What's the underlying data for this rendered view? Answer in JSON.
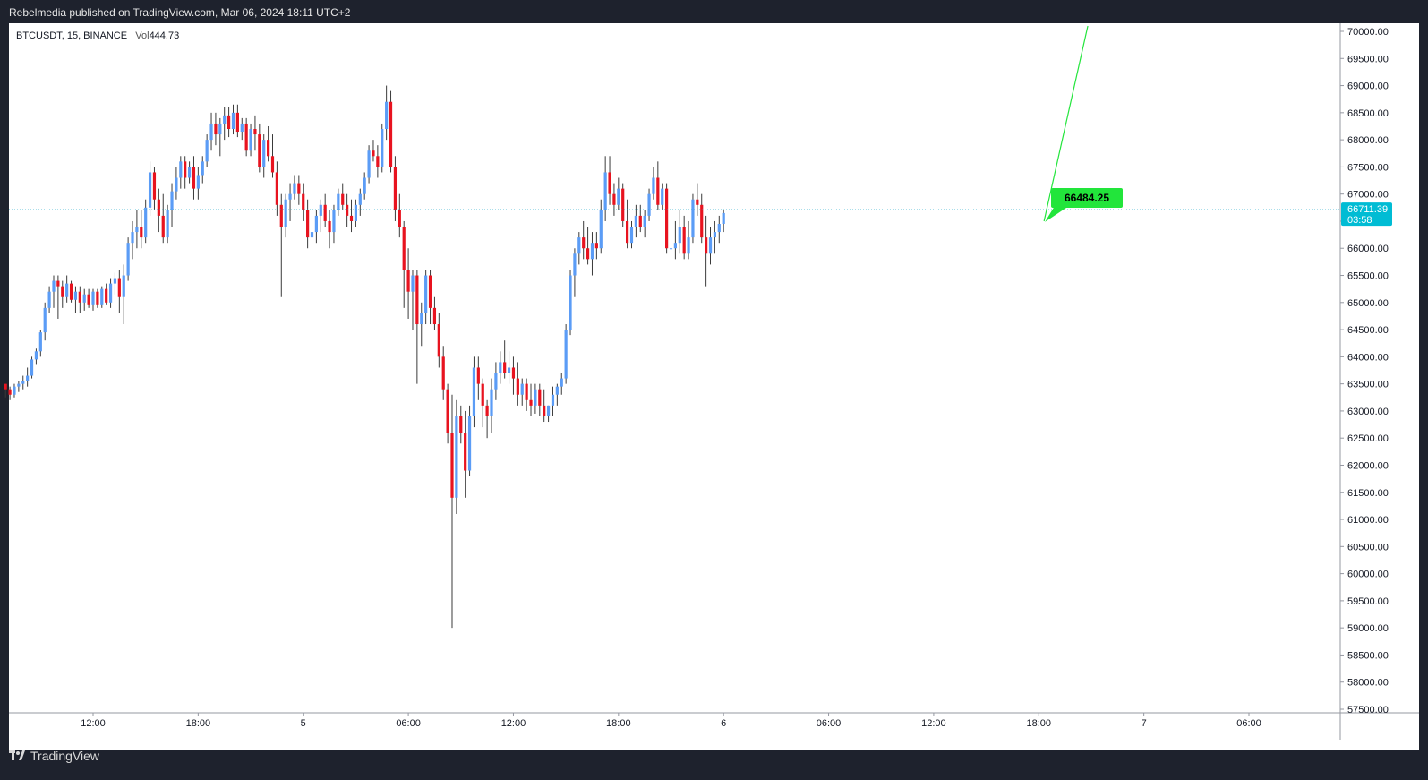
{
  "header": {
    "text": "Rebelmedia published on TradingView.com, Mar 06, 2024 18:11 UTC+2"
  },
  "legend": {
    "symbol": "BTCUSDT, 15, BINANCE",
    "vol_label": "Vol",
    "vol_value": "444.73"
  },
  "footer": {
    "brand": "TradingView"
  },
  "colors": {
    "up": "#5b9cf6",
    "down": "#e8131f",
    "wick": "#3a3a3a",
    "price_line": "#1ea7c7",
    "price_badge": "#00bcd4",
    "projection": "#22e53b",
    "label_bg": "#22e53b"
  },
  "chart_data": {
    "type": "candlestick",
    "symbol": "BTCUSDT",
    "interval": "15",
    "exchange": "BINANCE",
    "ylim": [
      57500,
      70000
    ],
    "y_ticks": [
      "70000.00",
      "69500.00",
      "69000.00",
      "68500.00",
      "68000.00",
      "67500.00",
      "67000.00",
      "66500.00",
      "66000.00",
      "65500.00",
      "65000.00",
      "64500.00",
      "64000.00",
      "63500.00",
      "63000.00",
      "62500.00",
      "62000.00",
      "61500.00",
      "61000.00",
      "60500.00",
      "60000.00",
      "59500.00",
      "59000.00",
      "58500.00",
      "58000.00",
      "57500.00"
    ],
    "x_ticks": [
      {
        "label": "12:00",
        "t": 12
      },
      {
        "label": "18:00",
        "t": 18
      },
      {
        "label": "5",
        "t": 24
      },
      {
        "label": "06:00",
        "t": 30
      },
      {
        "label": "12:00",
        "t": 36
      },
      {
        "label": "18:00",
        "t": 42
      },
      {
        "label": "6",
        "t": 48
      },
      {
        "label": "06:00",
        "t": 54
      },
      {
        "label": "12:00",
        "t": 60
      },
      {
        "label": "18:00",
        "t": 66
      },
      {
        "label": "7",
        "t": 72
      },
      {
        "label": "06:00",
        "t": 78
      }
    ],
    "xlim_hours": [
      7,
      83.5
    ],
    "current_price": {
      "value": 66711.39,
      "label": "66711.39",
      "countdown": "03:58"
    },
    "annotation": {
      "label": "66484.25",
      "price": 66484.25
    },
    "projection_line": {
      "from": {
        "t": 66.3,
        "price": 66500
      },
      "to": {
        "t": 68.8,
        "price": 70100
      }
    },
    "candles": [
      [
        63500,
        63500,
        63250,
        63400
      ],
      [
        63400,
        63450,
        63200,
        63300
      ],
      [
        63300,
        63500,
        63250,
        63450
      ],
      [
        63450,
        63550,
        63350,
        63500
      ],
      [
        63500,
        63650,
        63400,
        63550
      ],
      [
        63550,
        63800,
        63450,
        63650
      ],
      [
        63650,
        64000,
        63600,
        63950
      ],
      [
        63950,
        64150,
        63850,
        64100
      ],
      [
        64100,
        64500,
        64000,
        64450
      ],
      [
        64450,
        65000,
        64300,
        64900
      ],
      [
        64900,
        65300,
        64800,
        65200
      ],
      [
        65200,
        65500,
        64900,
        65400
      ],
      [
        65400,
        65500,
        64700,
        65300
      ],
      [
        65300,
        65400,
        64900,
        65100
      ],
      [
        65100,
        65500,
        65000,
        65350
      ],
      [
        65350,
        65400,
        65000,
        65050
      ],
      [
        65050,
        65300,
        64800,
        65200
      ],
      [
        65200,
        65300,
        64800,
        65000
      ],
      [
        65000,
        65250,
        64850,
        65150
      ],
      [
        65150,
        65250,
        64900,
        64950
      ],
      [
        64950,
        65250,
        64850,
        65200
      ],
      [
        65200,
        65250,
        64900,
        64950
      ],
      [
        64950,
        65300,
        64900,
        65250
      ],
      [
        65250,
        65350,
        64950,
        65000
      ],
      [
        65000,
        65450,
        64900,
        65350
      ],
      [
        65350,
        65550,
        65150,
        65450
      ],
      [
        65450,
        65600,
        64800,
        65100
      ],
      [
        65100,
        65700,
        64600,
        65500
      ],
      [
        65500,
        66200,
        65400,
        66100
      ],
      [
        66100,
        66500,
        65800,
        66300
      ],
      [
        66300,
        66700,
        66000,
        66400
      ],
      [
        66400,
        66700,
        66000,
        66200
      ],
      [
        66200,
        66900,
        66100,
        66750
      ],
      [
        66750,
        67600,
        66600,
        67400
      ],
      [
        67400,
        67500,
        66700,
        66900
      ],
      [
        66900,
        67100,
        66300,
        66600
      ],
      [
        66600,
        67000,
        66100,
        66200
      ],
      [
        66200,
        66800,
        66100,
        66700
      ],
      [
        66700,
        67200,
        66400,
        67050
      ],
      [
        67050,
        67500,
        66900,
        67300
      ],
      [
        67300,
        67700,
        67100,
        67600
      ],
      [
        67600,
        67700,
        67100,
        67300
      ],
      [
        67300,
        67600,
        67200,
        67500
      ],
      [
        67500,
        67700,
        66900,
        67100
      ],
      [
        67100,
        67500,
        66900,
        67350
      ],
      [
        67350,
        67700,
        67200,
        67600
      ],
      [
        67600,
        68100,
        67500,
        68000
      ],
      [
        68000,
        68500,
        67800,
        68300
      ],
      [
        68300,
        68500,
        67900,
        68100
      ],
      [
        68100,
        68400,
        67700,
        68300
      ],
      [
        68300,
        68600,
        68000,
        68450
      ],
      [
        68450,
        68600,
        68050,
        68200
      ],
      [
        68200,
        68650,
        68100,
        68500
      ],
      [
        68500,
        68650,
        68050,
        68150
      ],
      [
        68150,
        68400,
        68000,
        68300
      ],
      [
        68300,
        68400,
        67700,
        67800
      ],
      [
        67800,
        68300,
        67700,
        68200
      ],
      [
        68200,
        68450,
        67800,
        68100
      ],
      [
        68100,
        68300,
        67400,
        67500
      ],
      [
        67500,
        68100,
        67300,
        68000
      ],
      [
        68000,
        68250,
        67600,
        67700
      ],
      [
        67700,
        68100,
        67300,
        67400
      ],
      [
        67400,
        67600,
        66600,
        66800
      ],
      [
        66800,
        67000,
        65100,
        66400
      ],
      [
        66400,
        67000,
        66200,
        66900
      ],
      [
        66900,
        67200,
        66500,
        67000
      ],
      [
        67000,
        67350,
        66900,
        67200
      ],
      [
        67200,
        67350,
        66800,
        67000
      ],
      [
        67000,
        67200,
        66500,
        66700
      ],
      [
        66700,
        66900,
        66000,
        66200
      ],
      [
        66200,
        66500,
        65500,
        66300
      ],
      [
        66300,
        66700,
        66100,
        66600
      ],
      [
        66600,
        66900,
        66300,
        66800
      ],
      [
        66800,
        67000,
        66400,
        66500
      ],
      [
        66500,
        66700,
        66000,
        66300
      ],
      [
        66300,
        66800,
        66100,
        66700
      ],
      [
        66700,
        67100,
        66600,
        67000
      ],
      [
        67000,
        67200,
        66700,
        66800
      ],
      [
        66800,
        67000,
        66400,
        66600
      ],
      [
        66600,
        66900,
        66300,
        66500
      ],
      [
        66500,
        66900,
        66400,
        66800
      ],
      [
        66800,
        67100,
        66600,
        67000
      ],
      [
        67000,
        67400,
        66900,
        67300
      ],
      [
        67300,
        67900,
        67200,
        67800
      ],
      [
        67800,
        68000,
        67600,
        67700
      ],
      [
        67700,
        67900,
        67300,
        67500
      ],
      [
        67500,
        68300,
        67400,
        68200
      ],
      [
        68200,
        69000,
        68000,
        68700
      ],
      [
        68700,
        68900,
        67400,
        67500
      ],
      [
        67500,
        67700,
        66500,
        66700
      ],
      [
        66700,
        67000,
        66200,
        66400
      ],
      [
        66400,
        66500,
        64900,
        65600
      ],
      [
        65600,
        66000,
        64700,
        65200
      ],
      [
        65200,
        65600,
        64500,
        65500
      ],
      [
        65500,
        65600,
        63500,
        64600
      ],
      [
        64600,
        65000,
        64200,
        64800
      ],
      [
        64800,
        65600,
        64600,
        65500
      ],
      [
        65500,
        65600,
        64600,
        64900
      ],
      [
        64900,
        65100,
        64500,
        64600
      ],
      [
        64600,
        64800,
        63800,
        64000
      ],
      [
        64000,
        64200,
        63200,
        63400
      ],
      [
        63400,
        63500,
        62400,
        62600
      ],
      [
        62600,
        63300,
        59000,
        61400
      ],
      [
        61400,
        63200,
        61100,
        62900
      ],
      [
        62900,
        63100,
        62400,
        62600
      ],
      [
        62600,
        63000,
        61400,
        61900
      ],
      [
        61900,
        63100,
        61800,
        62900
      ],
      [
        62900,
        64000,
        62700,
        63800
      ],
      [
        63800,
        64000,
        63200,
        63500
      ],
      [
        63500,
        63600,
        62700,
        63100
      ],
      [
        63100,
        63200,
        62500,
        62900
      ],
      [
        62900,
        63600,
        62600,
        63400
      ],
      [
        63400,
        63900,
        63200,
        63700
      ],
      [
        63700,
        64100,
        63500,
        63900
      ],
      [
        63900,
        64300,
        63600,
        63700
      ],
      [
        63700,
        64100,
        63500,
        63800
      ],
      [
        63800,
        64000,
        63300,
        63600
      ],
      [
        63600,
        63900,
        63100,
        63300
      ],
      [
        63300,
        63600,
        63100,
        63500
      ],
      [
        63500,
        63600,
        63000,
        63200
      ],
      [
        63200,
        63500,
        62900,
        63100
      ],
      [
        63100,
        63500,
        62950,
        63400
      ],
      [
        63400,
        63500,
        62900,
        63100
      ],
      [
        63100,
        63400,
        62800,
        62900
      ],
      [
        62900,
        63100,
        62800,
        63100
      ],
      [
        63100,
        63450,
        62900,
        63300
      ],
      [
        63300,
        63500,
        63100,
        63450
      ],
      [
        63450,
        63700,
        63300,
        63600
      ],
      [
        63600,
        64600,
        63500,
        64500
      ],
      [
        64500,
        65600,
        64400,
        65500
      ],
      [
        65500,
        66000,
        65100,
        65900
      ],
      [
        65900,
        66300,
        65700,
        66200
      ],
      [
        66200,
        66500,
        65800,
        66000
      ],
      [
        66000,
        66400,
        65700,
        65800
      ],
      [
        65800,
        66300,
        65500,
        66100
      ],
      [
        66100,
        66300,
        65800,
        66000
      ],
      [
        66000,
        66900,
        65900,
        66700
      ],
      [
        66700,
        67700,
        66500,
        67400
      ],
      [
        67400,
        67700,
        66800,
        67000
      ],
      [
        67000,
        67200,
        66600,
        66800
      ],
      [
        66800,
        67300,
        66700,
        67100
      ],
      [
        67100,
        67200,
        66400,
        66500
      ],
      [
        66500,
        66900,
        66000,
        66100
      ],
      [
        66100,
        66500,
        66000,
        66400
      ],
      [
        66400,
        66800,
        66200,
        66600
      ],
      [
        66600,
        66800,
        66300,
        66400
      ],
      [
        66400,
        66700,
        66200,
        66600
      ],
      [
        66600,
        67100,
        66500,
        67000
      ],
      [
        67000,
        67500,
        66900,
        67300
      ],
      [
        67300,
        67600,
        66700,
        66800
      ],
      [
        66800,
        67200,
        66700,
        67100
      ],
      [
        67100,
        67200,
        65900,
        66000
      ],
      [
        66000,
        66300,
        65300,
        66000
      ],
      [
        66000,
        66500,
        65800,
        66100
      ],
      [
        66100,
        66700,
        65900,
        66400
      ],
      [
        66400,
        66600,
        65800,
        65900
      ],
      [
        65900,
        66500,
        65800,
        66200
      ],
      [
        66200,
        67000,
        66100,
        66900
      ],
      [
        66900,
        67200,
        66600,
        66800
      ],
      [
        66800,
        67000,
        66100,
        66200
      ],
      [
        66200,
        66600,
        65300,
        65900
      ],
      [
        65900,
        66400,
        65700,
        66200
      ],
      [
        66200,
        66500,
        65900,
        66300
      ],
      [
        66300,
        66600,
        66100,
        66450
      ],
      [
        66450,
        66700,
        66300,
        66650
      ]
    ]
  }
}
